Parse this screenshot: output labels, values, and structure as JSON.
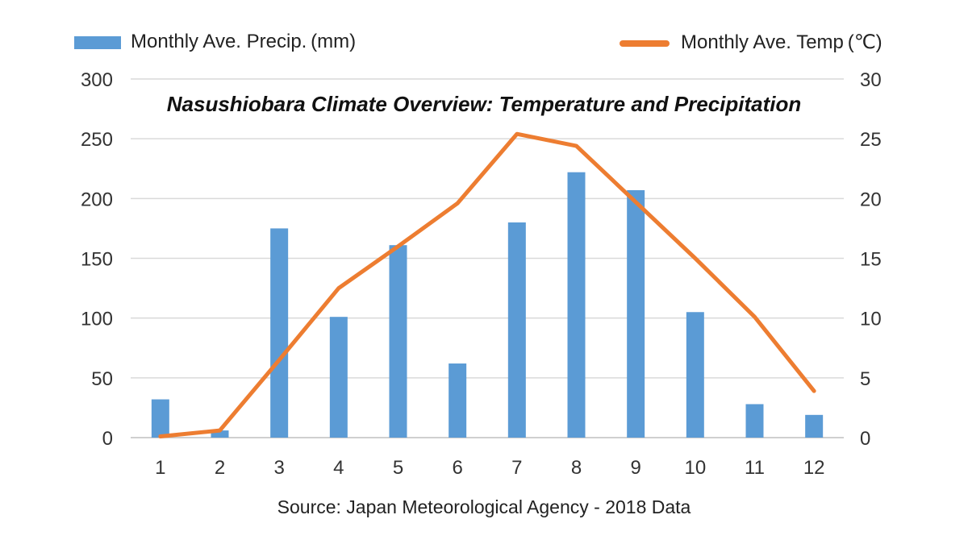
{
  "chart_data": {
    "type": "bar+line",
    "title": "Nasushiobara Climate Overview: Temperature and Precipitation",
    "source": "Source: Japan Meteorological Agency - 2018 Data",
    "categories": [
      "1",
      "2",
      "3",
      "4",
      "5",
      "6",
      "7",
      "8",
      "9",
      "10",
      "11",
      "12"
    ],
    "series": [
      {
        "name": "Monthly Ave. Precip. (mm)",
        "type": "bar",
        "axis": "left",
        "color": "#5B9BD5",
        "values": [
          32,
          6,
          175,
          101,
          161,
          62,
          180,
          222,
          207,
          105,
          28,
          19
        ]
      },
      {
        "name": "Monthly Ave. Temp (℃)",
        "type": "line",
        "axis": "right",
        "color": "#ED7D31",
        "values": [
          0.1,
          0.6,
          6.5,
          12.5,
          16.0,
          19.6,
          25.4,
          24.4,
          19.7,
          15.0,
          10.1,
          3.9
        ]
      }
    ],
    "y_left": {
      "min": 0,
      "max": 300,
      "ticks": [
        "0",
        "50",
        "100",
        "150",
        "200",
        "250",
        "300"
      ]
    },
    "y_right": {
      "min": 0,
      "max": 30,
      "ticks": [
        "0",
        "5",
        "10",
        "15",
        "20",
        "25",
        "30"
      ]
    },
    "grid": true,
    "legend": "top"
  }
}
